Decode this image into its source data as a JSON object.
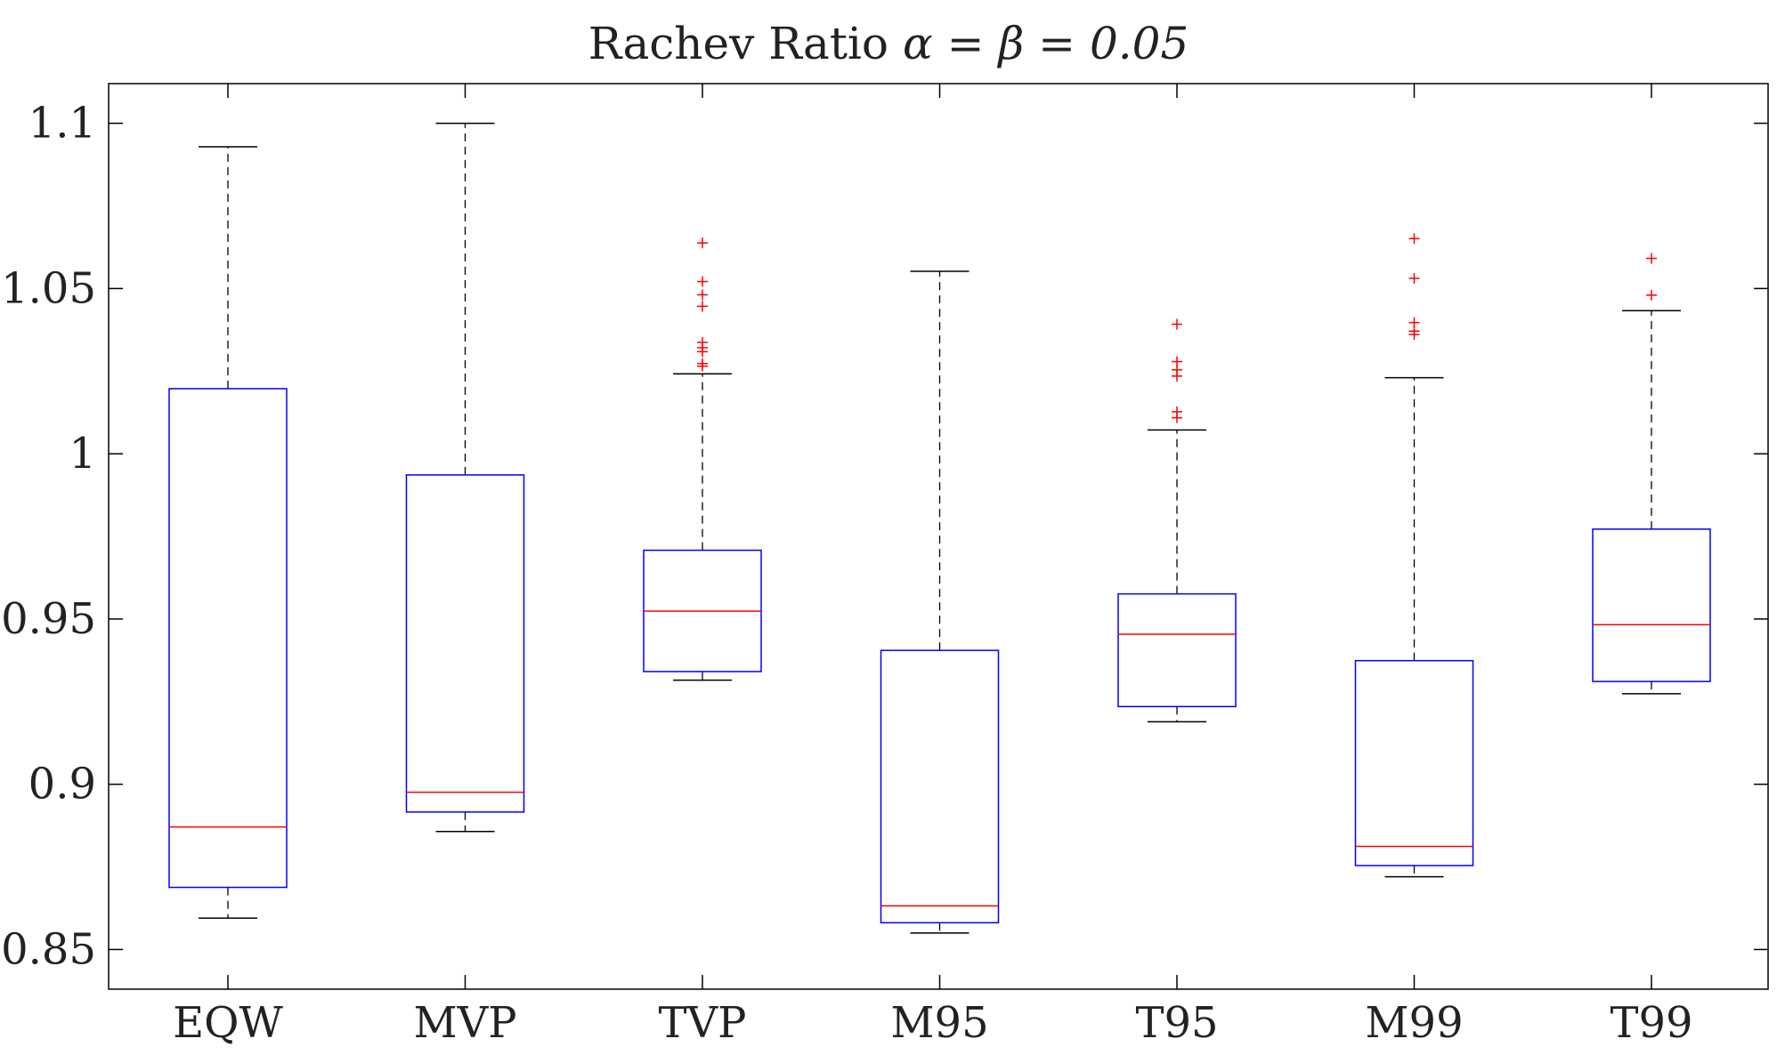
{
  "chart_data": {
    "type": "boxplot",
    "title": "Rachev Ratio α = β = 0.05",
    "title_parts": {
      "main": "Rachev Ratio",
      "formula": "α = β = 0.05"
    },
    "xlabel": "",
    "ylabel": "",
    "ylim": [
      0.838,
      1.112
    ],
    "yticks": [
      0.85,
      0.9,
      0.95,
      1,
      1.05,
      1.1
    ],
    "ytick_labels": [
      "0.85",
      "0.9",
      "0.95",
      "1",
      "1.05",
      "1.1"
    ],
    "grid": false,
    "categories": [
      "EQW",
      "MVP",
      "TVP",
      "M95",
      "T95",
      "M99",
      "T99"
    ],
    "boxes": [
      {
        "name": "EQW",
        "whisker_low": 0.8595,
        "q1": 0.8688,
        "median": 0.8871,
        "q3": 1.0197,
        "whisker_high": 1.0929,
        "outliers": []
      },
      {
        "name": "MVP",
        "whisker_low": 0.8857,
        "q1": 0.8916,
        "median": 0.8976,
        "q3": 0.9936,
        "whisker_high": 1.1,
        "outliers": []
      },
      {
        "name": "TVP",
        "whisker_low": 0.9315,
        "q1": 0.9341,
        "median": 0.9524,
        "q3": 0.9708,
        "whisker_high": 1.0242,
        "outliers": [
          1.0265,
          1.0273,
          1.0309,
          1.0321,
          1.0337,
          1.0446,
          1.0481,
          1.0521,
          1.0638
        ]
      },
      {
        "name": "M95",
        "whisker_low": 0.855,
        "q1": 0.8581,
        "median": 0.8632,
        "q3": 0.9405,
        "whisker_high": 1.0552,
        "outliers": []
      },
      {
        "name": "T95",
        "whisker_low": 0.9189,
        "q1": 0.9235,
        "median": 0.9454,
        "q3": 0.9576,
        "whisker_high": 1.0072,
        "outliers": [
          1.0109,
          1.0127,
          1.0235,
          1.0254,
          1.0279,
          1.0392
        ]
      },
      {
        "name": "M99",
        "whisker_low": 0.872,
        "q1": 0.8754,
        "median": 0.8812,
        "q3": 0.9374,
        "whisker_high": 1.023,
        "outliers": [
          1.0361,
          1.0371,
          1.0397,
          1.0531,
          1.0651
        ]
      },
      {
        "name": "T99",
        "whisker_low": 0.9274,
        "q1": 0.9311,
        "median": 0.9483,
        "q3": 0.9772,
        "whisker_high": 1.0433,
        "outliers": [
          1.048,
          1.0591
        ]
      }
    ],
    "colors": {
      "box": "#0000ff",
      "median": "#ff0000",
      "whisker": "#000000",
      "outlier": "#ff0000",
      "axis": "#000000",
      "text": "#222222"
    }
  }
}
